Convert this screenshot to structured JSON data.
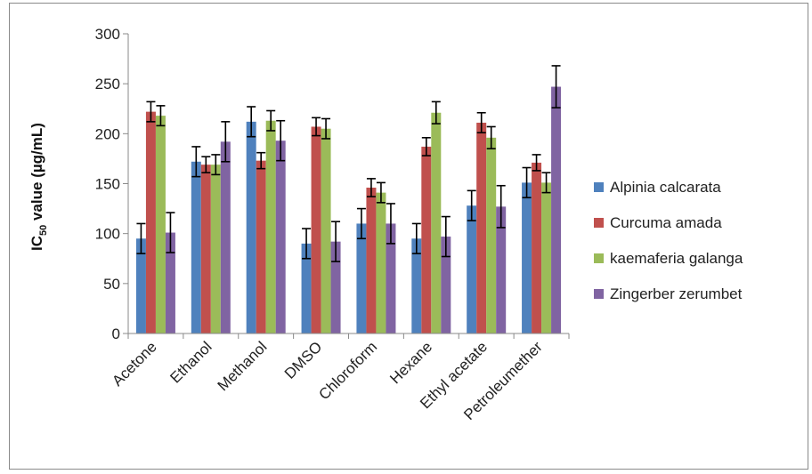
{
  "chart_data": {
    "type": "bar",
    "ylabel_main": "IC",
    "ylabel_sub": "50",
    "ylabel_rest": " value (µg/mL)",
    "xlabel": "",
    "ylim": [
      0,
      300
    ],
    "yticks": [
      0,
      50,
      100,
      150,
      200,
      250,
      300
    ],
    "grid": false,
    "legend_position": "right",
    "categories": [
      "Acetone",
      "Ethanol",
      "Methanol",
      "DMSO",
      "Chloroform",
      "Hexane",
      "Ethyl acetate",
      "Petroleumether"
    ],
    "series": [
      {
        "name": "Alpinia calcarata",
        "color": "#4f81bd",
        "values": [
          95,
          172,
          212,
          90,
          110,
          95,
          128,
          151
        ],
        "errors": [
          15,
          15,
          15,
          15,
          15,
          15,
          15,
          15
        ]
      },
      {
        "name": "Curcuma amada",
        "color": "#c0504d",
        "values": [
          222,
          169,
          173,
          207,
          146,
          187,
          211,
          171
        ],
        "errors": [
          10,
          8,
          8,
          9,
          9,
          9,
          10,
          8
        ]
      },
      {
        "name": "kaemaferia galanga",
        "color": "#9bbb59",
        "values": [
          218,
          169,
          213,
          205,
          141,
          221,
          196,
          151
        ],
        "errors": [
          10,
          10,
          10,
          10,
          10,
          11,
          11,
          10
        ]
      },
      {
        "name": "Zingerber zerumbet",
        "color": "#8064a2",
        "values": [
          101,
          192,
          193,
          92,
          110,
          97,
          127,
          247
        ],
        "errors": [
          20,
          20,
          20,
          20,
          20,
          20,
          21,
          21
        ]
      }
    ]
  }
}
